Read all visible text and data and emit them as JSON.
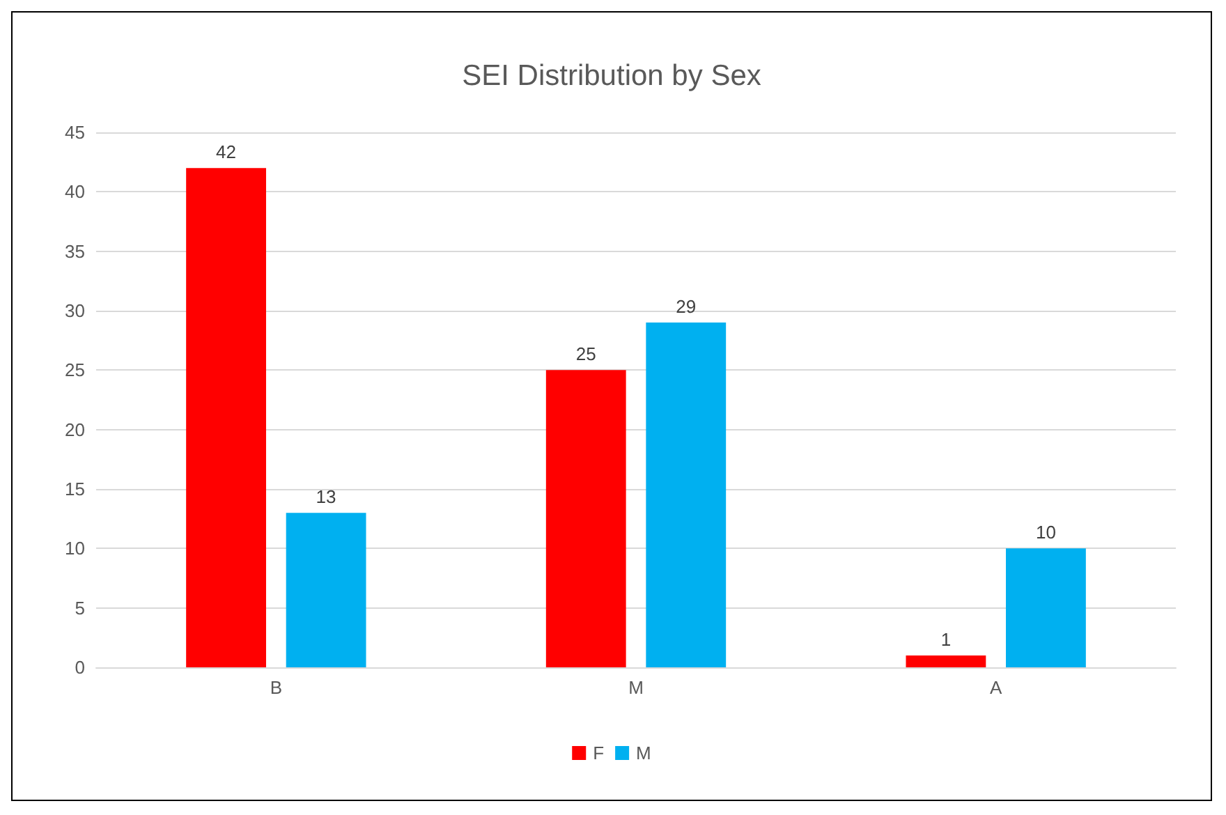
{
  "chart_data": {
    "type": "bar",
    "title": "SEI Distribution by Sex",
    "categories": [
      "B",
      "M",
      "A"
    ],
    "series": [
      {
        "name": "F",
        "color": "#ff0000",
        "values": [
          42,
          25,
          1
        ]
      },
      {
        "name": "M",
        "color": "#00b0f0",
        "values": [
          13,
          29,
          10
        ]
      }
    ],
    "ylim": [
      0,
      45
    ],
    "yticks": [
      0,
      5,
      10,
      15,
      20,
      25,
      30,
      35,
      40,
      45
    ],
    "grid": "y",
    "legend": "bottom",
    "data_labels": true
  }
}
